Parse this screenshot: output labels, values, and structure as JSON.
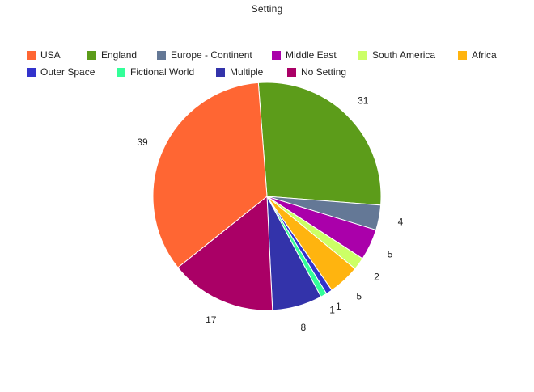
{
  "chart_data": {
    "type": "pie",
    "title": "Setting",
    "legend_position": "top",
    "categories": [
      "USA",
      "England",
      "Europe - Continent",
      "Middle East",
      "South America",
      "Africa",
      "Outer Space",
      "Fictional World",
      "Multiple",
      "No Setting"
    ],
    "values": [
      39,
      31,
      4,
      5,
      2,
      5,
      1,
      1,
      8,
      17
    ],
    "colors": [
      "#ff6633",
      "#5c9c1a",
      "#647896",
      "#aa00aa",
      "#ccff66",
      "#ffb40f",
      "#3333cc",
      "#33ff99",
      "#3333aa",
      "#aa0066"
    ],
    "slice_order": [
      "England",
      "Europe - Continent",
      "Middle East",
      "South America",
      "Africa",
      "Outer Space",
      "Fictional World",
      "Multiple",
      "No Setting",
      "USA"
    ],
    "labels": [
      "31",
      "4",
      "5",
      "2",
      "5",
      "1",
      "1",
      "8",
      "17",
      "39"
    ]
  }
}
